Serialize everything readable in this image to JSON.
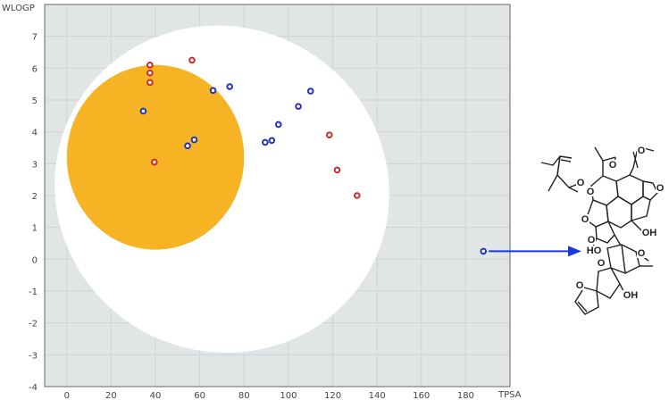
{
  "chart_data": {
    "type": "scatter",
    "title": "",
    "xlabel": "TPSA",
    "ylabel": "WLOGP",
    "xlim": [
      -10,
      200
    ],
    "ylim": [
      -4,
      8
    ],
    "x_ticks": [
      0,
      20,
      40,
      60,
      80,
      100,
      120,
      140,
      160,
      180
    ],
    "y_ticks": [
      -4,
      -3,
      -2,
      -1,
      0,
      1,
      2,
      3,
      4,
      5,
      6,
      7
    ],
    "grid": true,
    "regions": [
      {
        "shape": "ellipse",
        "label": "",
        "color": "#ffffff",
        "center": [
          70,
          2.2
        ],
        "radius_x": 76,
        "radius_y": 5.1,
        "rotation_deg": 26
      },
      {
        "shape": "ellipse",
        "label": "",
        "color": "#f6b324",
        "center": [
          40,
          3.2
        ],
        "radius_x": 40,
        "radius_y": 2.9,
        "rotation_deg": 0
      }
    ],
    "series": [
      {
        "color": "#cc2a2a",
        "points": [
          [
            37.5,
            6.1
          ],
          [
            37.5,
            5.85
          ],
          [
            37.5,
            5.55
          ],
          [
            56.5,
            6.25
          ],
          [
            39.5,
            3.05
          ],
          [
            118.5,
            3.9
          ],
          [
            122,
            2.8
          ],
          [
            131,
            2
          ]
        ]
      },
      {
        "color": "#2233bb",
        "points": [
          [
            34.5,
            4.65
          ],
          [
            66,
            5.3
          ],
          [
            73.5,
            5.42
          ],
          [
            110,
            5.28
          ],
          [
            104.5,
            4.8
          ],
          [
            95.5,
            4.23
          ],
          [
            92.5,
            3.73
          ],
          [
            89.5,
            3.67
          ],
          [
            57.5,
            3.75
          ],
          [
            54.5,
            3.56
          ],
          [
            188,
            0.25
          ]
        ]
      }
    ],
    "annotation": {
      "from_point": [
        188,
        0.25
      ],
      "arrow_color": "#1a3ad6",
      "structure_labels": [
        "O",
        "O",
        "O",
        "O",
        "O",
        "O",
        "O",
        "HO",
        "OH",
        "O",
        "O",
        "O",
        "OH"
      ]
    }
  },
  "colors": {
    "plot_bg": "#e1e5e6",
    "grid": "#cfd4d6",
    "frame": "#666666"
  }
}
